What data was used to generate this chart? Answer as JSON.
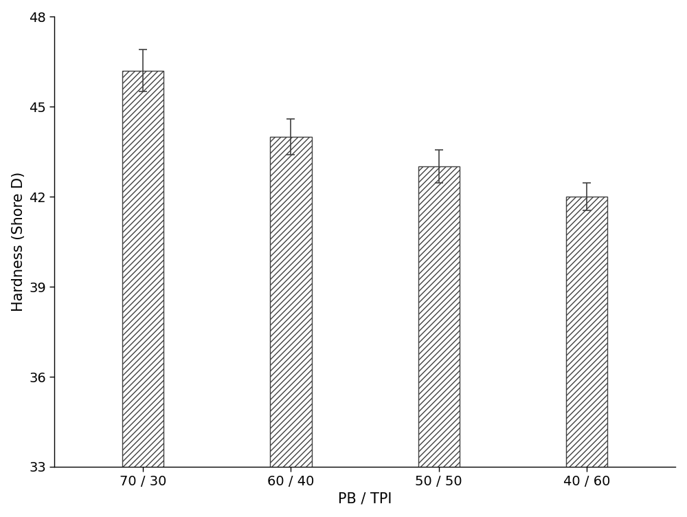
{
  "categories": [
    "70 / 30",
    "60 / 40",
    "50 / 50",
    "40 / 60"
  ],
  "values": [
    46.2,
    44.0,
    43.0,
    42.0
  ],
  "errors": [
    0.7,
    0.6,
    0.55,
    0.45
  ],
  "ylabel": "Hardness (Shore D)",
  "xlabel": "PB / TPI",
  "ylim": [
    33,
    48
  ],
  "yticks": [
    33,
    36,
    39,
    42,
    45,
    48
  ],
  "bar_color": "#ffffff",
  "bar_edge_color": "#404040",
  "hatch": "////",
  "bar_width": 0.28,
  "background_color": "#ffffff",
  "axis_fontsize": 15,
  "tick_fontsize": 14,
  "error_color": "#404040",
  "error_capsize": 4,
  "error_linewidth": 1.2
}
